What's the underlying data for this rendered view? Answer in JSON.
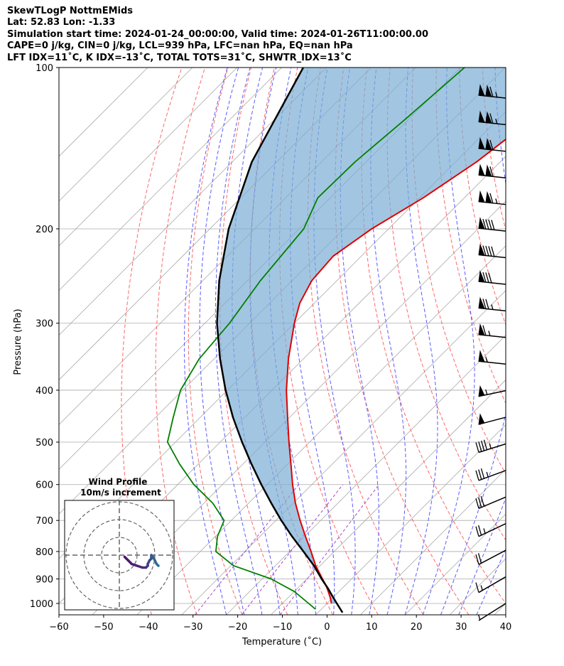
{
  "header": {
    "line1": "SkewTLogP NottmEMids",
    "line2": "Lat: 52.83   Lon: -1.33",
    "line3": "Simulation start time: 2024-01-24_00:00:00, Valid time: 2024-01-26T11:00:00.00",
    "line4": "CAPE=0 j/kg, CIN=0 j/kg, LCL=939 hPa, LFC=nan hPa, EQ=nan hPa",
    "line5": "LFT IDX=11˚C, K IDX=-13˚C, TOTAL TOTS=31˚C, SHWTR_IDX=13˚C"
  },
  "inset": {
    "title": "Wind Profile",
    "subtitle": "10m/s increment"
  },
  "chart_data": {
    "type": "line",
    "xlabel": "Temperature (˚C)",
    "ylabel": "Pressure (hPa)",
    "xlim": [
      -60,
      40
    ],
    "ylim": [
      1050,
      100
    ],
    "y_scale": "log",
    "skew": true,
    "x_ticks": [
      "−60",
      "−50",
      "−40",
      "−30",
      "−20",
      "−10",
      "0",
      "10",
      "20",
      "30",
      "40"
    ],
    "y_ticks": [
      "100",
      "200",
      "300",
      "400",
      "500",
      "600",
      "700",
      "800",
      "900",
      "1000"
    ],
    "grid": true,
    "colors": {
      "temperature": "#e00000",
      "dewpoint": "#008000",
      "parcel": "#000000",
      "cin_shade": "#7aaed4",
      "dry_adiabat": "#ff6666",
      "moist_adiabat": "#5a5aff",
      "mixing_ratio": "#aa44cc",
      "isotherm": "#aaaaaa"
    },
    "series": [
      {
        "key": "temperature",
        "pressure": [
          1000,
          975,
          950,
          925,
          900,
          850,
          800,
          750,
          700,
          650,
          600,
          550,
          500,
          450,
          400,
          350,
          300,
          275,
          250,
          225,
          200,
          175,
          150,
          125,
          100
        ],
        "values": [
          1.0,
          -0.6,
          -2.4,
          -4.3,
          -6.5,
          -11.0,
          -15.2,
          -19.8,
          -24.6,
          -29.5,
          -34.3,
          -39.2,
          -44.6,
          -50.4,
          -56.8,
          -63.3,
          -70.0,
          -73.3,
          -75.6,
          -76.3,
          -73.8,
          -69.2,
          -65.3,
          -62.5,
          -59.4
        ]
      },
      {
        "key": "dewpoint",
        "pressure": [
          1025,
          1000,
          950,
          900,
          850,
          800,
          750,
          700,
          650,
          600,
          550,
          500,
          450,
          400,
          350,
          300,
          250,
          200,
          175,
          150,
          125,
          100
        ],
        "values": [
          -1.3,
          -4.1,
          -10.0,
          -18.0,
          -29.4,
          -36.5,
          -39.5,
          -41.6,
          -48.0,
          -56.4,
          -64.1,
          -71.8,
          -76.0,
          -80.5,
          -83.3,
          -84.5,
          -87.1,
          -89.0,
          -92.8,
          -92.5,
          -90.8,
          -89.1
        ]
      },
      {
        "key": "parcel",
        "pressure": [
          1040,
          1000,
          960,
          939,
          900,
          850,
          800,
          750,
          700,
          650,
          600,
          550,
          500,
          450,
          400,
          350,
          300,
          250,
          200,
          150,
          100
        ],
        "values": [
          5.5,
          2.2,
          -1.2,
          -3.0,
          -6.7,
          -11.4,
          -16.9,
          -22.8,
          -28.8,
          -34.9,
          -41.3,
          -48.0,
          -55.1,
          -62.6,
          -70.4,
          -78.6,
          -87.3,
          -96.3,
          -105.8,
          -115.6,
          -125.2
        ]
      }
    ],
    "wind_barbs_speed_kt": [
      115,
      115,
      110,
      110,
      115,
      90,
      90,
      80,
      75,
      65,
      55,
      55,
      50,
      45,
      35,
      30,
      25,
      20,
      15,
      5
    ],
    "inset_hodograph": {
      "u": [
        3,
        5,
        7,
        10,
        13,
        15,
        16,
        16,
        17,
        18,
        18,
        18,
        19,
        20,
        21,
        22
      ],
      "v": [
        -1,
        -3,
        -5,
        -6,
        -7,
        -7,
        -6,
        -5,
        -3,
        -2,
        -1,
        0,
        -1,
        -3,
        -5,
        -6
      ]
    }
  }
}
